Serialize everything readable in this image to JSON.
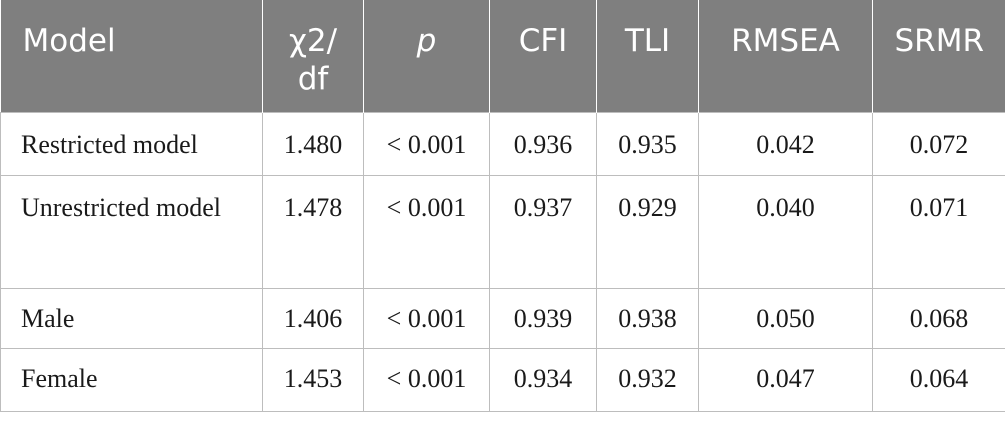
{
  "table": {
    "headers": [
      "Model",
      "χ2/ df",
      "p",
      "CFI",
      "TLI",
      "RMSEA",
      "SRMR"
    ],
    "rows": [
      [
        "Restricted model",
        "1.480",
        "< 0.001",
        "0.936",
        "0.935",
        "0.042",
        "0.072"
      ],
      [
        "Unrestricted model",
        "1.478",
        "< 0.001",
        "0.937",
        "0.929",
        "0.040",
        "0.071"
      ],
      [
        "Male",
        "1.406",
        "< 0.001",
        "0.939",
        "0.938",
        "0.050",
        "0.068"
      ],
      [
        "Female",
        "1.453",
        "< 0.001",
        "0.934",
        "0.932",
        "0.047",
        "0.064"
      ]
    ]
  },
  "colors": {
    "header_background": "#7f7f7f",
    "header_text": "#ffffff",
    "grid_lines": "#bdbdbd",
    "body_text": "#1a1a1a"
  }
}
